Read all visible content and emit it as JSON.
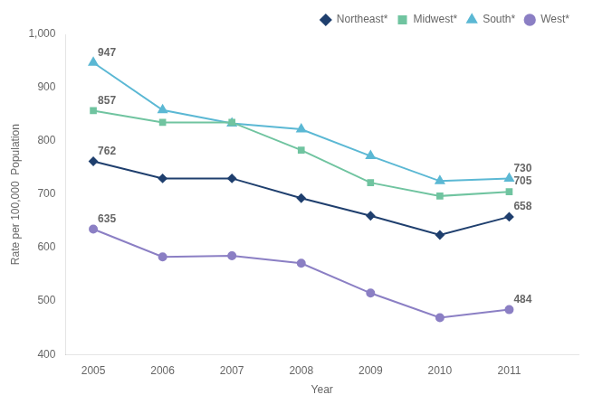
{
  "chart_data": {
    "type": "line",
    "x": [
      2005,
      2006,
      2007,
      2008,
      2009,
      2010,
      2011
    ],
    "series": [
      {
        "name": "Northeast*",
        "color": "#1f3f6e",
        "marker": "diamond",
        "values": [
          762,
          730,
          730,
          693,
          660,
          624,
          658
        ]
      },
      {
        "name": "Midwest*",
        "color": "#70c4a0",
        "marker": "square",
        "values": [
          857,
          835,
          835,
          783,
          722,
          697,
          705
        ]
      },
      {
        "name": "South*",
        "color": "#5bb8d4",
        "marker": "triangle",
        "values": [
          947,
          858,
          833,
          822,
          772,
          725,
          730
        ]
      },
      {
        "name": "West*",
        "color": "#8b7fc4",
        "marker": "circle",
        "values": [
          635,
          583,
          585,
          571,
          515,
          469,
          484
        ]
      }
    ],
    "xlabel": "Year",
    "ylabel": "Rate per 100,000  Population",
    "xlim": [
      2004.6,
      2012.0
    ],
    "xticks": [
      2005,
      2006,
      2007,
      2008,
      2009,
      2010,
      2011
    ],
    "ylim": [
      400,
      1000
    ],
    "yticks": [
      400,
      500,
      600,
      700,
      800,
      900,
      {
        "value": 1000,
        "label": "1,000"
      }
    ],
    "grid": false,
    "legend": "upper right",
    "annotations": [
      {
        "text": "762",
        "x": 2005,
        "y": 762
      },
      {
        "text": "658",
        "x": 2011,
        "y": 658
      },
      {
        "text": "857",
        "x": 2005,
        "y": 857
      },
      {
        "text": "705",
        "x": 2011,
        "y": 705
      },
      {
        "text": "947",
        "x": 2005,
        "y": 947
      },
      {
        "text": "730",
        "x": 2011,
        "y": 730
      },
      {
        "text": "635",
        "x": 2005,
        "y": 635
      },
      {
        "text": "484",
        "x": 2011,
        "y": 484
      }
    ]
  }
}
